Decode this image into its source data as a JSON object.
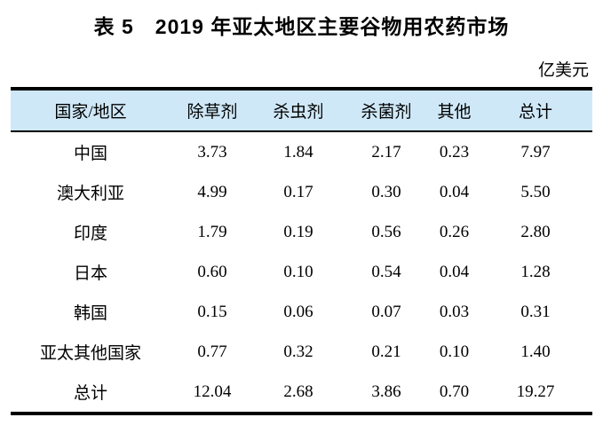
{
  "document": {
    "title": "表 5　2019 年亚太地区主要谷物用农药市场",
    "unit_label": "亿美元"
  },
  "table": {
    "headers": [
      "国家/地区",
      "除草剂",
      "杀虫剂",
      "杀菌剂",
      "其他",
      "总计"
    ],
    "rows": [
      [
        "中国",
        "3.73",
        "1.84",
        "2.17",
        "0.23",
        "7.97"
      ],
      [
        "澳大利亚",
        "4.99",
        "0.17",
        "0.30",
        "0.04",
        "5.50"
      ],
      [
        "印度",
        "1.79",
        "0.19",
        "0.56",
        "0.26",
        "2.80"
      ],
      [
        "日本",
        "0.60",
        "0.10",
        "0.54",
        "0.04",
        "1.28"
      ],
      [
        "韩国",
        "0.15",
        "0.06",
        "0.07",
        "0.03",
        "0.31"
      ],
      [
        "亚太其他国家",
        "0.77",
        "0.32",
        "0.21",
        "0.10",
        "1.40"
      ],
      [
        "总计",
        "12.04",
        "2.68",
        "3.86",
        "0.70",
        "19.27"
      ]
    ]
  },
  "colors": {
    "header_bg": "#cfe8f7",
    "border": "#000000",
    "text": "#000000"
  }
}
